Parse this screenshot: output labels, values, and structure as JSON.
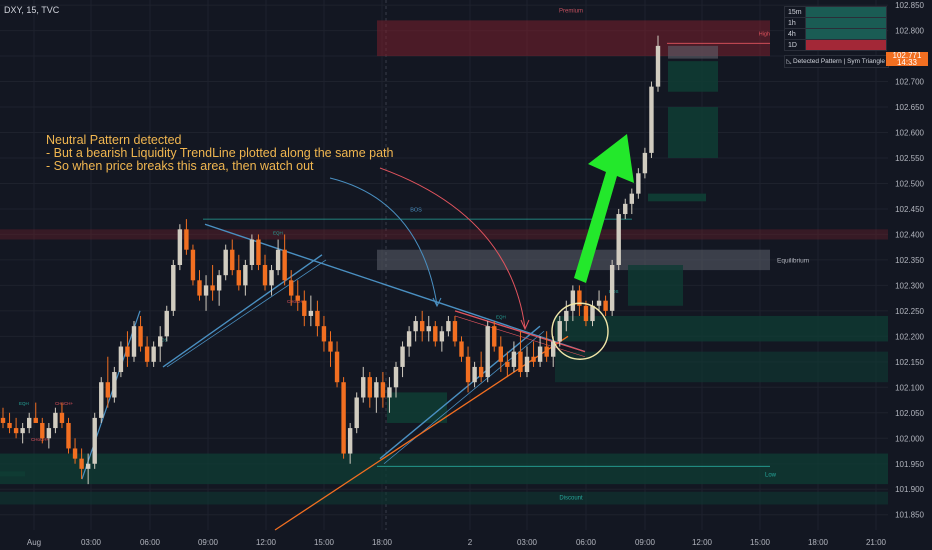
{
  "header": {
    "symbol": "DXY, 15, TVC"
  },
  "annotation": {
    "text": "Neutral Pattern detected\n- But a bearish Liquidity TrendLine plotted along the same path\n- So when price breaks this area, then watch out"
  },
  "timeframe_table": {
    "rows": [
      {
        "label": "15m",
        "state": "bull"
      },
      {
        "label": "1h",
        "state": "bull"
      },
      {
        "label": "4h",
        "state": "bull"
      },
      {
        "label": "1D",
        "state": "bear"
      }
    ]
  },
  "pattern_status": {
    "icon": "triangle-pattern-icon",
    "text": "Detected Pattern | Sym Triangle"
  },
  "price_tag": {
    "price": "102.771",
    "countdown": "14:33"
  },
  "zone_labels": {
    "premium": "Premium",
    "equilibrium": "Equilibrium",
    "discount": "Discount",
    "high": "High",
    "low": "Low",
    "bos": "BOS",
    "eqh": "EQH",
    "choch": "CHoCH+"
  },
  "colors": {
    "bull": "#d1ccc0",
    "bear": "#f26f21",
    "premium": "#7a1f2b",
    "discount": "#0f3b33",
    "trendline": "#4a90c2",
    "arrow": "#23e82b"
  },
  "chart_data": {
    "type": "candlestick",
    "symbol": "DXY",
    "timeframe": "15",
    "ylim": [
      101.82,
      102.86
    ],
    "yticks": [
      "101.850",
      "101.900",
      "101.950",
      "102.000",
      "102.050",
      "102.100",
      "102.150",
      "102.200",
      "102.250",
      "102.300",
      "102.350",
      "102.400",
      "102.450",
      "102.500",
      "102.550",
      "102.600",
      "102.650",
      "102.700",
      "102.750",
      "102.800",
      "102.850"
    ],
    "xticks": [
      "Aug",
      "03:00",
      "06:00",
      "09:00",
      "12:00",
      "15:00",
      "18:00",
      "2",
      "03:00",
      "06:00",
      "09:00",
      "12:00",
      "15:00",
      "18:00",
      "21:00"
    ],
    "last_price": 102.771,
    "ohlc": [
      [
        102.04,
        102.06,
        102.02,
        102.03
      ],
      [
        102.03,
        102.05,
        102.01,
        102.02
      ],
      [
        102.02,
        102.04,
        102.0,
        102.01
      ],
      [
        102.01,
        102.03,
        101.99,
        102.02
      ],
      [
        102.02,
        102.05,
        102.01,
        102.04
      ],
      [
        102.04,
        102.07,
        102.03,
        102.03
      ],
      [
        102.03,
        102.04,
        101.99,
        102.0
      ],
      [
        102.0,
        102.03,
        101.98,
        102.02
      ],
      [
        102.02,
        102.06,
        102.01,
        102.05
      ],
      [
        102.05,
        102.07,
        102.02,
        102.03
      ],
      [
        102.03,
        102.04,
        101.97,
        101.98
      ],
      [
        101.98,
        102.0,
        101.95,
        101.96
      ],
      [
        101.96,
        101.98,
        101.92,
        101.94
      ],
      [
        101.94,
        101.97,
        101.91,
        101.95
      ],
      [
        101.95,
        102.05,
        101.94,
        102.04
      ],
      [
        102.04,
        102.12,
        102.03,
        102.11
      ],
      [
        102.11,
        102.16,
        102.06,
        102.08
      ],
      [
        102.08,
        102.14,
        102.07,
        102.13
      ],
      [
        102.13,
        102.19,
        102.12,
        102.18
      ],
      [
        102.18,
        102.21,
        102.14,
        102.16
      ],
      [
        102.16,
        102.23,
        102.15,
        102.22
      ],
      [
        102.22,
        102.24,
        102.17,
        102.18
      ],
      [
        102.18,
        102.2,
        102.14,
        102.15
      ],
      [
        102.15,
        102.19,
        102.14,
        102.18
      ],
      [
        102.18,
        102.22,
        102.15,
        102.2
      ],
      [
        102.2,
        102.26,
        102.19,
        102.25
      ],
      [
        102.25,
        102.35,
        102.24,
        102.34
      ],
      [
        102.34,
        102.42,
        102.33,
        102.41
      ],
      [
        102.41,
        102.43,
        102.36,
        102.37
      ],
      [
        102.37,
        102.38,
        102.3,
        102.31
      ],
      [
        102.31,
        102.33,
        102.27,
        102.28
      ],
      [
        102.28,
        102.32,
        102.25,
        102.3
      ],
      [
        102.3,
        102.34,
        102.27,
        102.29
      ],
      [
        102.29,
        102.33,
        102.26,
        102.32
      ],
      [
        102.32,
        102.38,
        102.31,
        102.37
      ],
      [
        102.37,
        102.39,
        102.32,
        102.33
      ],
      [
        102.33,
        102.36,
        102.29,
        102.3
      ],
      [
        102.3,
        102.35,
        102.28,
        102.34
      ],
      [
        102.34,
        102.4,
        102.33,
        102.39
      ],
      [
        102.39,
        102.4,
        102.33,
        102.34
      ],
      [
        102.34,
        102.36,
        102.29,
        102.3
      ],
      [
        102.3,
        102.34,
        102.28,
        102.33
      ],
      [
        102.33,
        102.39,
        102.32,
        102.37
      ],
      [
        102.37,
        102.4,
        102.3,
        102.31
      ],
      [
        102.31,
        102.33,
        102.26,
        102.28
      ],
      [
        102.28,
        102.31,
        102.25,
        102.27
      ],
      [
        102.27,
        102.29,
        102.22,
        102.24
      ],
      [
        102.24,
        102.28,
        102.22,
        102.25
      ],
      [
        102.25,
        102.27,
        102.2,
        102.22
      ],
      [
        102.22,
        102.24,
        102.17,
        102.19
      ],
      [
        102.19,
        102.21,
        102.14,
        102.17
      ],
      [
        102.17,
        102.19,
        102.1,
        102.11
      ],
      [
        102.11,
        102.12,
        101.96,
        101.97
      ],
      [
        101.97,
        102.03,
        101.95,
        102.02
      ],
      [
        102.02,
        102.09,
        102.01,
        102.08
      ],
      [
        102.08,
        102.14,
        102.07,
        102.12
      ],
      [
        102.12,
        102.13,
        102.06,
        102.08
      ],
      [
        102.08,
        102.12,
        102.05,
        102.11
      ],
      [
        102.11,
        102.13,
        102.06,
        102.08
      ],
      [
        102.08,
        102.12,
        102.05,
        102.1
      ],
      [
        102.1,
        102.15,
        102.08,
        102.14
      ],
      [
        102.14,
        102.19,
        102.12,
        102.18
      ],
      [
        102.18,
        102.22,
        102.16,
        102.21
      ],
      [
        102.21,
        102.24,
        102.19,
        102.23
      ],
      [
        102.23,
        102.25,
        102.19,
        102.21
      ],
      [
        102.21,
        102.24,
        102.19,
        102.22
      ],
      [
        102.22,
        102.23,
        102.18,
        102.19
      ],
      [
        102.19,
        102.22,
        102.17,
        102.21
      ],
      [
        102.21,
        102.24,
        102.2,
        102.23
      ],
      [
        102.23,
        102.24,
        102.18,
        102.19
      ],
      [
        102.19,
        102.2,
        102.15,
        102.16
      ],
      [
        102.16,
        102.18,
        102.09,
        102.11
      ],
      [
        102.11,
        102.15,
        102.1,
        102.14
      ],
      [
        102.14,
        102.17,
        102.11,
        102.12
      ],
      [
        102.12,
        102.23,
        102.11,
        102.22
      ],
      [
        102.22,
        102.23,
        102.17,
        102.18
      ],
      [
        102.18,
        102.2,
        102.13,
        102.15
      ],
      [
        102.15,
        102.17,
        102.12,
        102.14
      ],
      [
        102.14,
        102.19,
        102.13,
        102.17
      ],
      [
        102.17,
        102.21,
        102.12,
        102.13
      ],
      [
        102.13,
        102.18,
        102.12,
        102.16
      ],
      [
        102.16,
        102.19,
        102.14,
        102.15
      ],
      [
        102.15,
        102.2,
        102.14,
        102.18
      ],
      [
        102.18,
        102.21,
        102.15,
        102.16
      ],
      [
        102.16,
        102.2,
        102.14,
        102.19
      ],
      [
        102.19,
        102.24,
        102.18,
        102.23
      ],
      [
        102.23,
        102.27,
        102.21,
        102.25
      ],
      [
        102.25,
        102.3,
        102.23,
        102.29
      ],
      [
        102.29,
        102.3,
        102.24,
        102.26
      ],
      [
        102.26,
        102.27,
        102.22,
        102.23
      ],
      [
        102.23,
        102.27,
        102.22,
        102.26
      ],
      [
        102.26,
        102.29,
        102.25,
        102.27
      ],
      [
        102.27,
        102.28,
        102.24,
        102.25
      ],
      [
        102.25,
        102.35,
        102.24,
        102.34
      ],
      [
        102.34,
        102.45,
        102.33,
        102.44
      ],
      [
        102.44,
        102.47,
        102.43,
        102.46
      ],
      [
        102.46,
        102.49,
        102.44,
        102.48
      ],
      [
        102.48,
        102.53,
        102.47,
        102.52
      ],
      [
        102.52,
        102.57,
        102.51,
        102.56
      ],
      [
        102.56,
        102.7,
        102.55,
        102.69
      ],
      [
        102.69,
        102.79,
        102.68,
        102.77
      ]
    ]
  }
}
